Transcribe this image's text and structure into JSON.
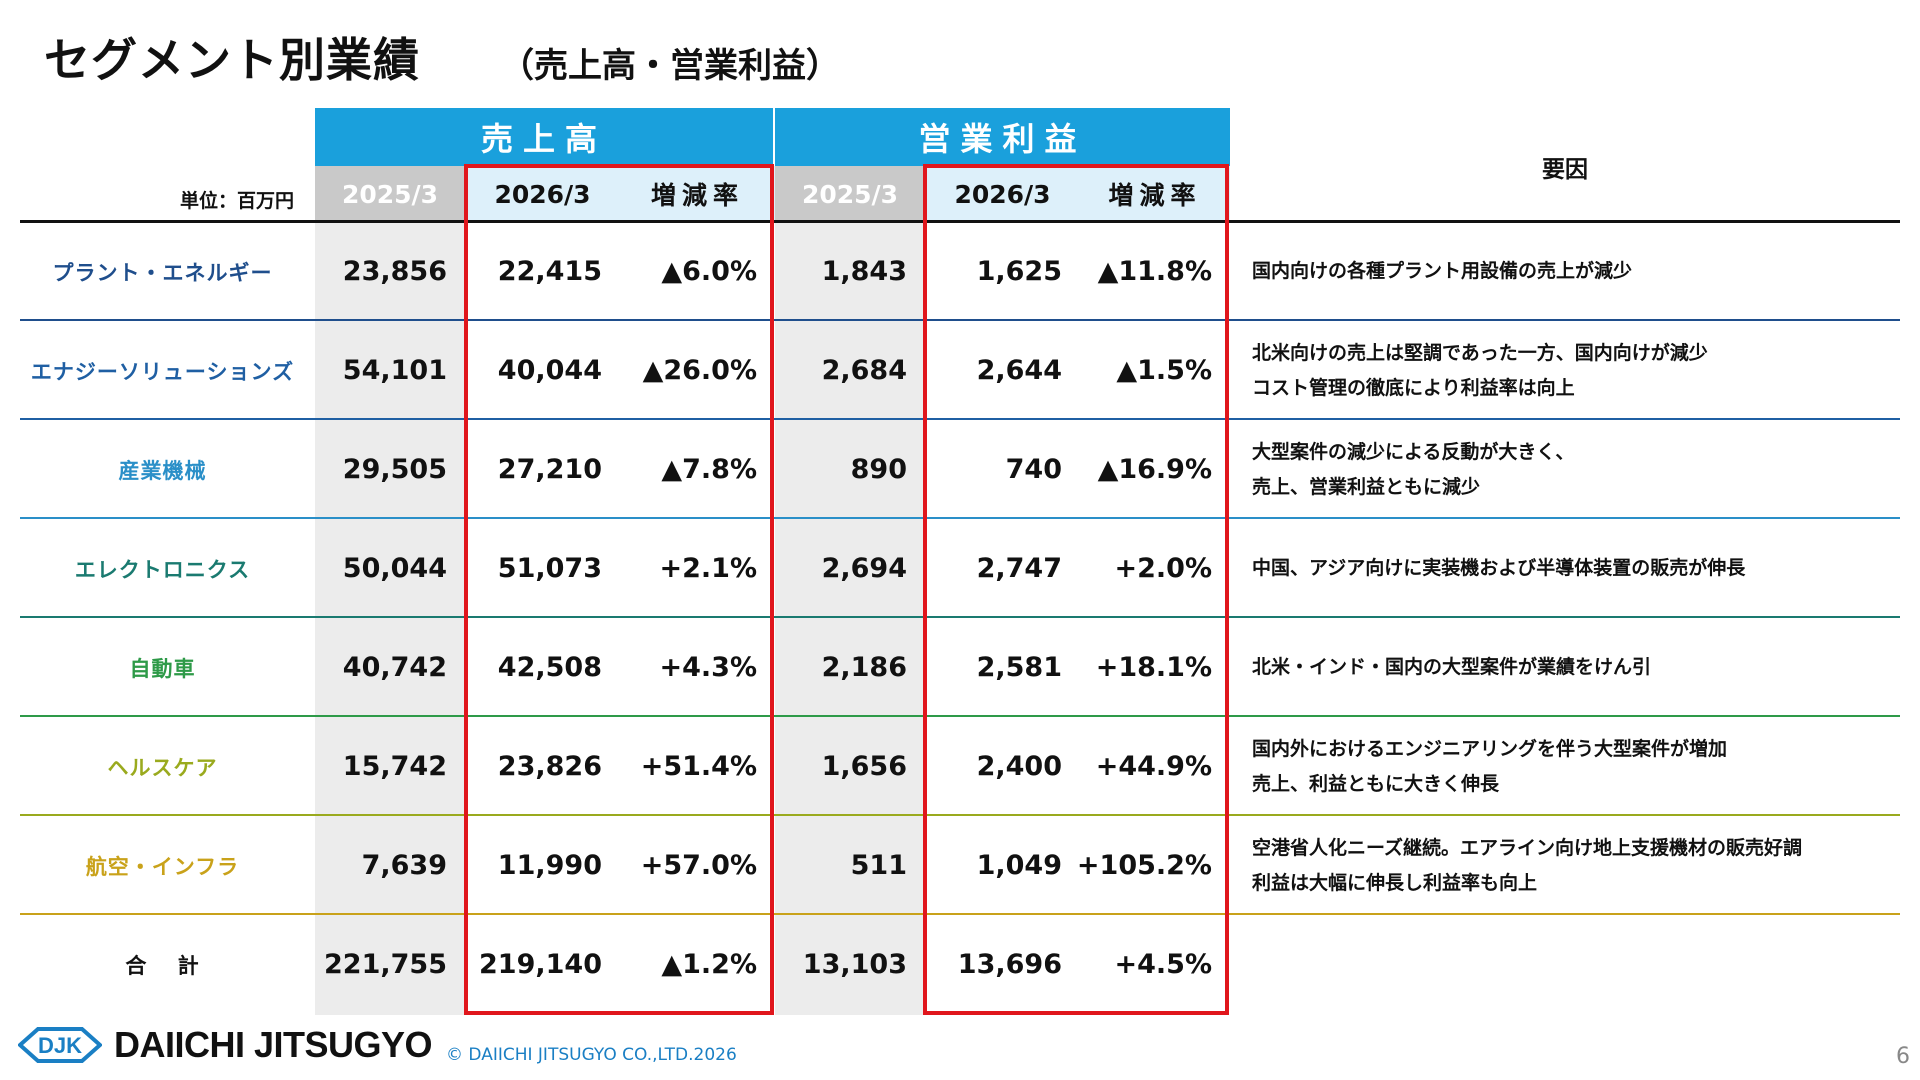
{
  "header": {
    "title": "セグメント別業績",
    "subtitle": "（売上高・営業利益）"
  },
  "table": {
    "unit_label": "単位：百万円",
    "sales_band": "売上高",
    "op_band": "営業利益",
    "reasons_header": "要因",
    "col_prev": "2025/3",
    "col_cur": "2026/3",
    "col_rate": "増減率",
    "rows": [
      {
        "segment": "プラント・エネルギー",
        "color": "#1f4e8c",
        "sales_prev": "23,856",
        "sales_cur": "22,415",
        "sales_rate": "▲6.0%",
        "op_prev": "1,843",
        "op_cur": "1,625",
        "op_rate": "▲11.8%",
        "reason": "国内向けの各種プラント用設備の売上が減少"
      },
      {
        "segment": "エナジーソリューションズ",
        "color": "#1f5fa3",
        "sales_prev": "54,101",
        "sales_cur": "40,044",
        "sales_rate": "▲26.0%",
        "op_prev": "2,684",
        "op_cur": "2,644",
        "op_rate": "▲1.5%",
        "reason": "北米向けの売上は堅調であった一方、国内向けが減少\nコスト管理の徹底により利益率は向上"
      },
      {
        "segment": "産業機械",
        "color": "#2a8fc8",
        "sales_prev": "29,505",
        "sales_cur": "27,210",
        "sales_rate": "▲7.8%",
        "op_prev": "890",
        "op_cur": "740",
        "op_rate": "▲16.9%",
        "reason": "大型案件の減少による反動が大きく、\n売上、営業利益ともに減少"
      },
      {
        "segment": "エレクトロニクス",
        "color": "#1a7a70",
        "sales_prev": "50,044",
        "sales_cur": "51,073",
        "sales_rate": "+2.1%",
        "op_prev": "2,694",
        "op_cur": "2,747",
        "op_rate": "+2.0%",
        "reason": "中国、アジア向けに実装機および半導体装置の販売が伸長"
      },
      {
        "segment": "自動車",
        "color": "#2e9a48",
        "sales_prev": "40,742",
        "sales_cur": "42,508",
        "sales_rate": "+4.3%",
        "op_prev": "2,186",
        "op_cur": "2,581",
        "op_rate": "+18.1%",
        "reason": "北米・インド・国内の大型案件が業績をけん引"
      },
      {
        "segment": "ヘルスケア",
        "color": "#9aaa1e",
        "sales_prev": "15,742",
        "sales_cur": "23,826",
        "sales_rate": "+51.4%",
        "op_prev": "1,656",
        "op_cur": "2,400",
        "op_rate": "+44.9%",
        "reason": "国内外におけるエンジニアリングを伴う大型案件が増加\n売上、利益ともに大きく伸長"
      },
      {
        "segment": "航空・インフラ",
        "color": "#c9a21a",
        "sales_prev": "7,639",
        "sales_cur": "11,990",
        "sales_rate": "+57.0%",
        "op_prev": "511",
        "op_cur": "1,049",
        "op_rate": "+105.2%",
        "reason": "空港省人化ニーズ継続。エアライン向け地上支援機材の販売好調\n利益は大幅に伸長し利益率も向上"
      },
      {
        "segment": "合　 計",
        "color": "#111111",
        "sales_prev": "221,755",
        "sales_cur": "219,140",
        "sales_rate": "▲1.2%",
        "op_prev": "13,103",
        "op_cur": "13,696",
        "op_rate": "+4.5%",
        "reason": ""
      }
    ]
  },
  "footer": {
    "logo_mark": "DJK",
    "company": "DAIICHI JITSUGYO",
    "copyright": "© DAIICHI JITSUGYO CO.,LTD.2026",
    "page_number": "6"
  }
}
